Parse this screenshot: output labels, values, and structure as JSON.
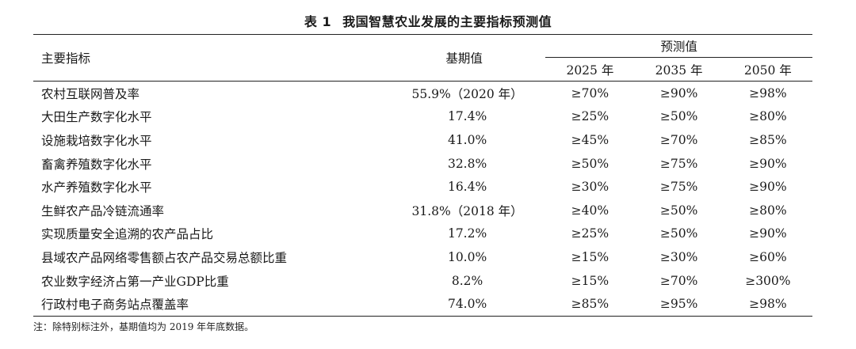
{
  "table_title": {
    "number": "表 1",
    "text": "我国智慧农业发展的主要指标预测值"
  },
  "headers": {
    "indicator": "主要指标",
    "baseline": "基期值",
    "forecast": "预测值",
    "years": [
      "2025 年",
      "2035 年",
      "2050 年"
    ]
  },
  "rows": [
    {
      "indicator": "农村互联网普及率",
      "baseline": "55.9%（2020 年）",
      "y2025": "≥70%",
      "y2035": "≥90%",
      "y2050": "≥98%"
    },
    {
      "indicator": "大田生产数字化水平",
      "baseline": "17.4%",
      "y2025": "≥25%",
      "y2035": "≥50%",
      "y2050": "≥80%"
    },
    {
      "indicator": "设施栽培数字化水平",
      "baseline": "41.0%",
      "y2025": "≥45%",
      "y2035": "≥70%",
      "y2050": "≥85%"
    },
    {
      "indicator": "畜禽养殖数字化水平",
      "baseline": "32.8%",
      "y2025": "≥50%",
      "y2035": "≥75%",
      "y2050": "≥90%"
    },
    {
      "indicator": "水产养殖数字化水平",
      "baseline": "16.4%",
      "y2025": "≥30%",
      "y2035": "≥75%",
      "y2050": "≥90%"
    },
    {
      "indicator": "生鲜农产品冷链流通率",
      "baseline": "31.8%（2018 年）",
      "y2025": "≥40%",
      "y2035": "≥50%",
      "y2050": "≥80%"
    },
    {
      "indicator": "实现质量安全追溯的农产品占比",
      "baseline": "17.2%",
      "y2025": "≥25%",
      "y2035": "≥50%",
      "y2050": "≥90%"
    },
    {
      "indicator": "县域农产品网络零售额占农产品交易总额比重",
      "baseline": "10.0%",
      "y2025": "≥15%",
      "y2035": "≥30%",
      "y2050": "≥60%"
    },
    {
      "indicator": "农业数字经济占第一产业GDP比重",
      "baseline": "8.2%",
      "y2025": "≥15%",
      "y2035": "≥70%",
      "y2050": "≥300%"
    },
    {
      "indicator": "行政村电子商务站点覆盖率",
      "baseline": "74.0%",
      "y2025": "≥85%",
      "y2035": "≥95%",
      "y2050": "≥98%"
    }
  ],
  "note": "注：除特别标注外，基期值均为 2019 年年底数据。"
}
